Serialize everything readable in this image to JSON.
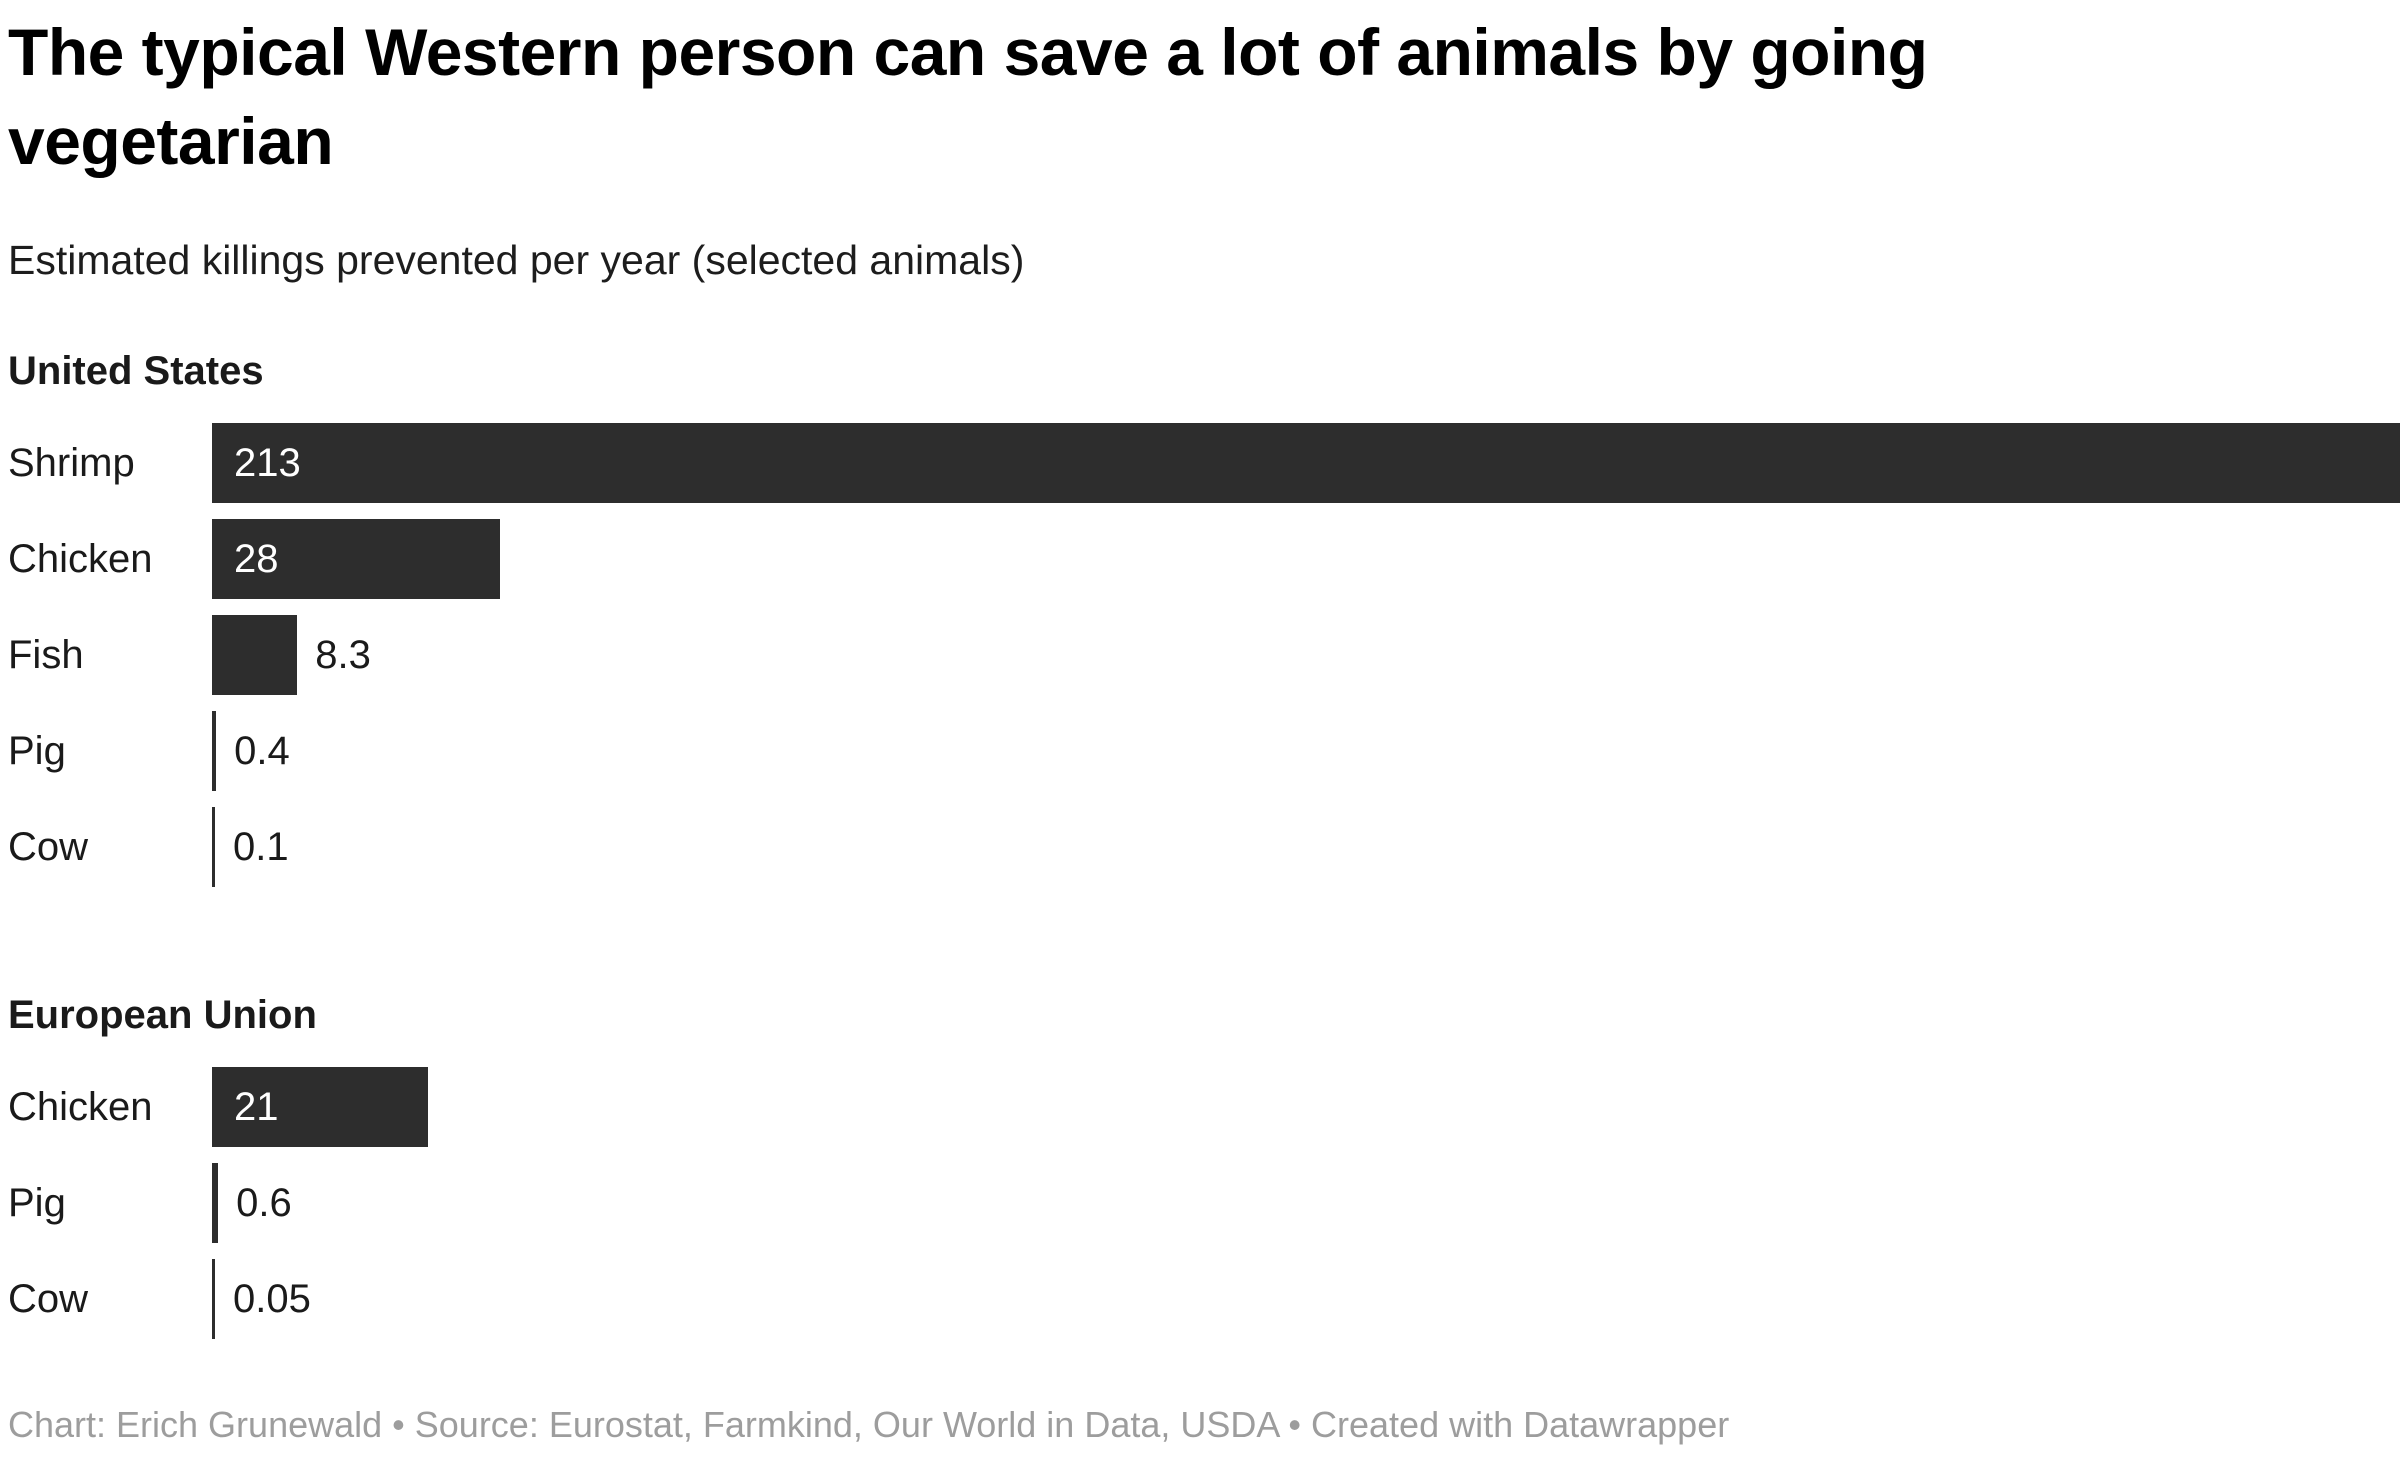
{
  "header": {
    "title": "The typical Western person can save a lot of animals by going vegetarian",
    "subtitle": "Estimated killings prevented per year (selected animals)"
  },
  "footer": {
    "credit": "Chart: Erich Grunewald • Source: Eurostat, Farmkind, Our World in Data, USDA • Created with Datawrapper"
  },
  "colors": {
    "bar": "#2d2d2d",
    "value_inside": "#ffffff",
    "value_outside": "#1a1a1a",
    "footer_text": "#9d9d9d"
  },
  "chart_data": {
    "type": "bar",
    "orientation": "horizontal",
    "title": "The typical Western person can save a lot of animals by going vegetarian",
    "subtitle": "Estimated killings prevented per year (selected animals)",
    "xlabel": "",
    "ylabel": "",
    "axis_max": 213,
    "grid": false,
    "legend": false,
    "sections": [
      {
        "label": "United States",
        "categories": [
          "Shrimp",
          "Chicken",
          "Fish",
          "Pig",
          "Cow"
        ],
        "values": [
          213,
          28,
          8.3,
          0.4,
          0.1
        ],
        "value_labels": [
          "213",
          "28",
          "8.3",
          "0.4",
          "0.1"
        ]
      },
      {
        "label": "European Union",
        "categories": [
          "Chicken",
          "Pig",
          "Cow"
        ],
        "values": [
          21,
          0.6,
          0.05
        ],
        "value_labels": [
          "21",
          "0.6",
          "0.05"
        ]
      }
    ]
  }
}
